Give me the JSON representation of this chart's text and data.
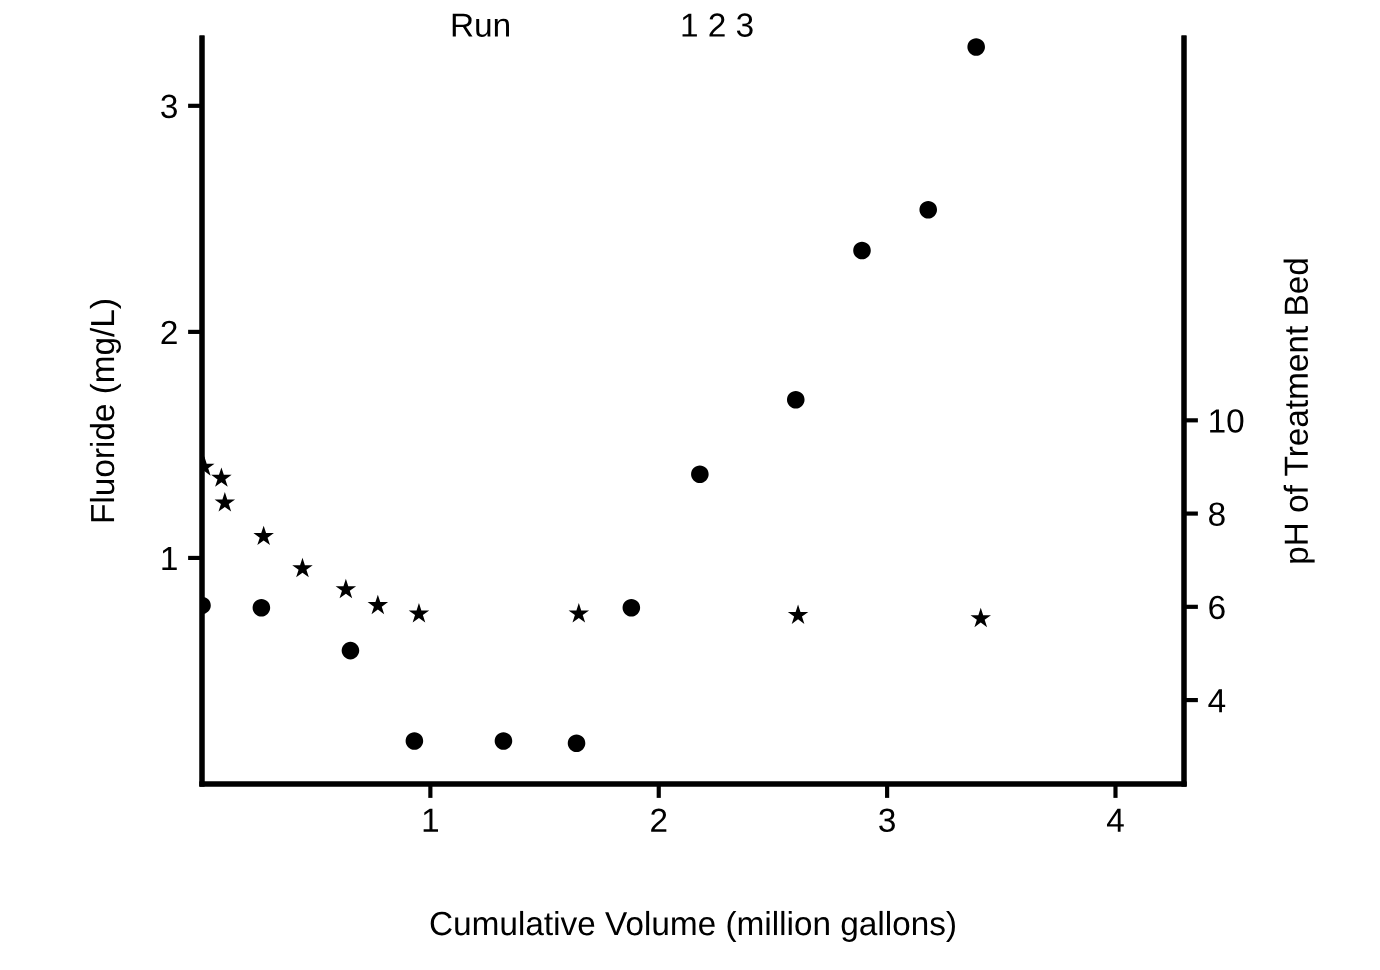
{
  "chart_data": {
    "type": "scatter",
    "xlabel": "Cumulative Volume (million gallons)",
    "ylabel": "Fluoride (mg/L)",
    "y2label": "pH of Treatment Bed",
    "annotations": [
      "Run",
      "1 2 3"
    ],
    "xlim": [
      0,
      4.3
    ],
    "xticks": [
      1,
      2,
      3,
      4
    ],
    "ylim": [
      0,
      3.3
    ],
    "yticks": [
      1,
      2,
      3
    ],
    "y2lim": [
      2.2,
      18.2
    ],
    "y2ticks": [
      4,
      6,
      8,
      10
    ],
    "grid": false,
    "legend": false,
    "series": [
      {
        "color": "#000000",
        "marker": "circle",
        "x": [
          0,
          0.26,
          0.65,
          0.93,
          1.32,
          1.64,
          1.88,
          2.18,
          2.6,
          2.89,
          3.18,
          3.39
        ],
        "values": [
          0.79,
          0.78,
          0.59,
          0.19,
          0.19,
          0.18,
          0.78,
          1.37,
          1.7,
          2.36,
          2.54,
          3.26
        ]
      },
      {
        "color": "#000000",
        "marker": "star",
        "axis": "y2",
        "x": [
          0.01,
          0.085,
          0.1,
          0.27,
          0.44,
          0.63,
          0.77,
          0.95,
          1.65,
          2.61,
          3.41
        ],
        "values": [
          9.0,
          8.76,
          8.23,
          7.51,
          6.82,
          6.37,
          6.03,
          5.85,
          5.85,
          5.82,
          5.75
        ]
      }
    ]
  }
}
